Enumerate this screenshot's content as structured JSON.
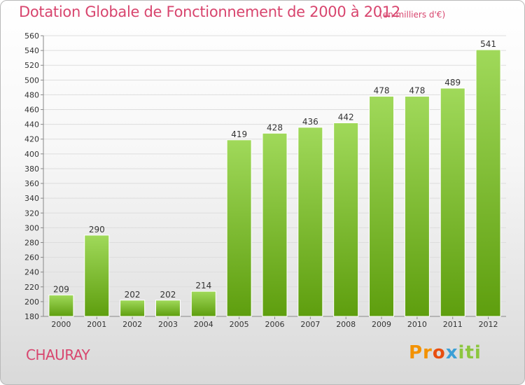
{
  "header": {
    "title": "Dotation Globale de Fonctionnement de 2000 à 2012",
    "unit": "(en milliers d'€)"
  },
  "footer": {
    "commune": "CHAURAY",
    "logo": "Proxiti"
  },
  "colors": {
    "title": "#d8456e",
    "bar_top": "#a0d95a",
    "bar_bottom": "#5e9e0e",
    "grid": "#dddddd"
  },
  "chart_data": {
    "type": "bar",
    "title": "Dotation Globale de Fonctionnement de 2000 à 2012",
    "subtitle": "(en milliers d'€)",
    "categories": [
      "2000",
      "2001",
      "2002",
      "2003",
      "2004",
      "2005",
      "2006",
      "2007",
      "2008",
      "2009",
      "2010",
      "2011",
      "2012"
    ],
    "values": [
      209,
      290,
      202,
      202,
      214,
      419,
      428,
      436,
      442,
      478,
      478,
      489,
      541
    ],
    "ylim": [
      180,
      560
    ],
    "ytick_step": 20,
    "grid": true,
    "data_labels": true
  }
}
